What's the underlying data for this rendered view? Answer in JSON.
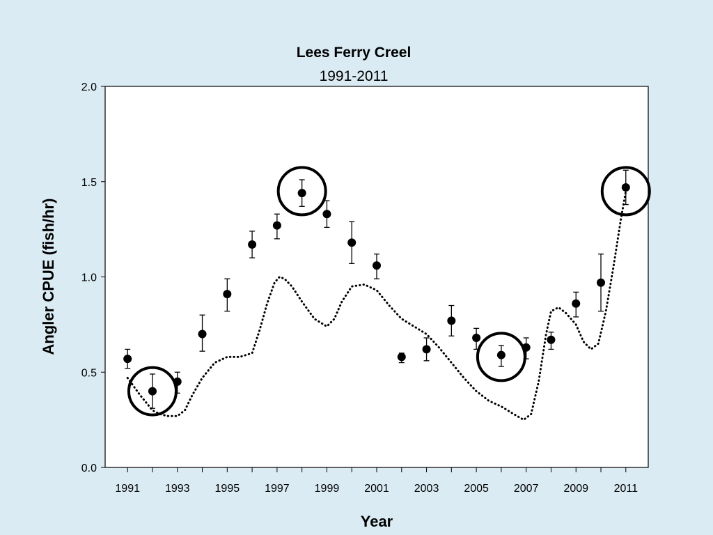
{
  "chart_data": {
    "type": "scatter",
    "title": "Lees Ferry Creel",
    "subtitle": "1991-2011",
    "xlabel": "Year",
    "ylabel": "Angler CPUE (fish/hr)",
    "xlim": [
      1990.1,
      2011.9
    ],
    "ylim": [
      0,
      2.0
    ],
    "yticks": [
      0.0,
      0.5,
      1.0,
      1.5,
      2.0
    ],
    "ytick_labels": [
      "0.0",
      "0.5",
      "1.0",
      "1.5",
      "2.0"
    ],
    "xticks": [
      1991,
      1993,
      1995,
      1997,
      1999,
      2001,
      2003,
      2005,
      2007,
      2009,
      2011
    ],
    "xtick_labels": [
      "1991",
      "1993",
      "1995",
      "1997",
      "1999",
      "2001",
      "2003",
      "2005",
      "2007",
      "2009",
      "2011"
    ],
    "grid": false,
    "series": [
      {
        "x": [
          1991,
          1992,
          1993,
          1994,
          1995,
          1996,
          1997,
          1998,
          1999,
          2000,
          2001,
          2002,
          2003,
          2004,
          2005,
          2006,
          2007,
          2008,
          2009,
          2010,
          2011
        ],
        "y": [
          0.57,
          0.4,
          0.45,
          0.7,
          0.91,
          1.17,
          1.27,
          1.44,
          1.33,
          1.18,
          1.06,
          0.58,
          0.62,
          0.77,
          0.68,
          0.59,
          0.63,
          0.67,
          0.86,
          0.97,
          1.47
        ],
        "err_low": [
          0.52,
          0.31,
          0.39,
          0.61,
          0.82,
          1.1,
          1.2,
          1.37,
          1.26,
          1.07,
          0.99,
          0.55,
          0.56,
          0.69,
          0.62,
          0.53,
          0.57,
          0.62,
          0.79,
          0.82,
          1.38
        ],
        "err_high": [
          0.62,
          0.49,
          0.5,
          0.8,
          0.99,
          1.24,
          1.33,
          1.51,
          1.4,
          1.29,
          1.12,
          0.6,
          0.68,
          0.85,
          0.73,
          0.64,
          0.68,
          0.71,
          0.92,
          1.12,
          1.56
        ],
        "color": "#000000"
      },
      {
        "style": "dotted",
        "x": [
          1991.0,
          1991.5,
          1992.0,
          1992.3,
          1992.6,
          1993.0,
          1993.3,
          1993.6,
          1994.0,
          1994.5,
          1995.0,
          1995.5,
          1996.0,
          1996.3,
          1996.6,
          1996.9,
          1997.1,
          1997.3,
          1997.6,
          1998.0,
          1998.5,
          1999.0,
          1999.3,
          1999.6,
          2000.0,
          2000.5,
          2001.0,
          2001.5,
          2002.0,
          2002.5,
          2003.0,
          2003.5,
          2004.0,
          2004.5,
          2005.0,
          2005.5,
          2006.0,
          2006.5,
          2006.9,
          2007.2,
          2007.5,
          2007.8,
          2008.0,
          2008.3,
          2008.6,
          2009.0,
          2009.3,
          2009.6,
          2009.9,
          2010.2,
          2010.5,
          2010.8,
          2011.0
        ],
        "y": [
          0.47,
          0.38,
          0.3,
          0.28,
          0.27,
          0.27,
          0.3,
          0.38,
          0.47,
          0.55,
          0.58,
          0.58,
          0.6,
          0.72,
          0.86,
          0.97,
          1.0,
          0.99,
          0.95,
          0.87,
          0.78,
          0.74,
          0.78,
          0.87,
          0.95,
          0.96,
          0.93,
          0.85,
          0.78,
          0.74,
          0.7,
          0.63,
          0.55,
          0.47,
          0.4,
          0.35,
          0.32,
          0.28,
          0.25,
          0.28,
          0.45,
          0.7,
          0.82,
          0.84,
          0.81,
          0.75,
          0.66,
          0.62,
          0.65,
          0.82,
          1.05,
          1.3,
          1.45
        ],
        "color": "#000000"
      }
    ],
    "annotations": [
      {
        "type": "circle",
        "x": 1992,
        "y": 0.4
      },
      {
        "type": "circle",
        "x": 1998,
        "y": 1.45
      },
      {
        "type": "circle",
        "x": 2006,
        "y": 0.58
      },
      {
        "type": "circle",
        "x": 2011,
        "y": 1.45
      }
    ]
  },
  "colors": {
    "background": "#daebf3",
    "plot_background": "#ffffff",
    "ink": "#000000"
  }
}
